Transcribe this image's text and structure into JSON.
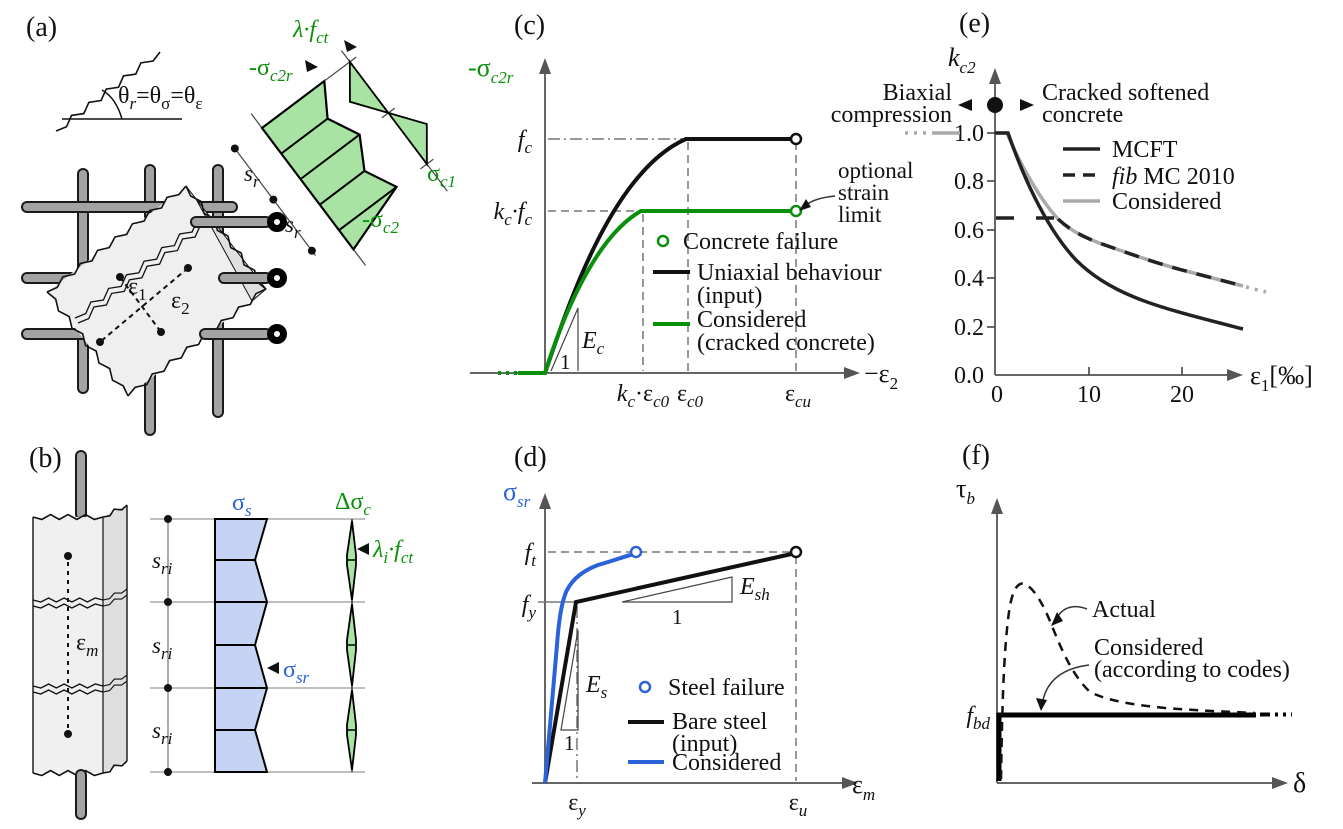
{
  "figure_title": "Material and kinematic model panels (a)-(f)",
  "colors": {
    "green": "#0a8f0a",
    "green_fill": "#a9e3a3",
    "blue": "#2a62d9",
    "blue_fill": "#c5d4f5",
    "gray_curve": "#a9a9a9",
    "axis": "#666666",
    "bar_fill": "#a3a3a3",
    "concrete": "#f0f0f0"
  },
  "a": {
    "label": "(a)",
    "theta": [
      "θ",
      "r",
      "=θ",
      "σ",
      "=θ",
      "ε"
    ],
    "lam_fct": [
      "λ·f",
      "ct"
    ],
    "sig_c2r": [
      "-σ",
      "c2r"
    ],
    "sig_c1": [
      "σ",
      "c1"
    ],
    "sig_c2": [
      "-σ",
      "c2"
    ],
    "sr": [
      "s",
      "r"
    ],
    "eps1": [
      "ε",
      "1"
    ],
    "eps2": [
      "ε",
      "2"
    ]
  },
  "b": {
    "label": "(b)",
    "eps_m": [
      "ε",
      "m"
    ],
    "sri": [
      "s",
      "ri"
    ],
    "sig_s": [
      "σ",
      "s"
    ],
    "sig_sr": [
      "σ",
      "sr"
    ],
    "dsig_c": [
      "Δσ",
      "c"
    ],
    "lami_fct": [
      "λ",
      "i",
      "·f",
      "ct"
    ]
  },
  "c": {
    "label": "(c)",
    "ylab": [
      "-σ",
      "c2r"
    ],
    "xlab": [
      "−ε",
      "2"
    ],
    "fc": [
      "f",
      "c"
    ],
    "kcfc": [
      "k",
      "c",
      "·f",
      "c"
    ],
    "Ec": [
      "E",
      "c"
    ],
    "one": "1",
    "kc_ec0": [
      "k",
      "c",
      "·ε",
      "c0"
    ],
    "ec0": [
      "ε",
      "c0"
    ],
    "ecu": [
      "ε",
      "cu"
    ],
    "leg_fail": "Concrete failure",
    "leg_uni1": "Uniaxial behaviour",
    "leg_uni2": "(input)",
    "leg_con1": "Considered",
    "leg_con2": "(cracked concrete)",
    "note": [
      "optional",
      "strain",
      "limit"
    ]
  },
  "d": {
    "label": "(d)",
    "ylab": [
      "σ",
      "sr"
    ],
    "xlab": [
      "ε",
      "m"
    ],
    "ft": [
      "f",
      "t"
    ],
    "fy": [
      "f",
      "y"
    ],
    "Es": [
      "E",
      "s"
    ],
    "Esh": [
      "E",
      "sh"
    ],
    "one": "1",
    "ey": [
      "ε",
      "y"
    ],
    "eu": [
      "ε",
      "u"
    ],
    "leg_fail": "Steel failure",
    "leg_bare1": "Bare steel",
    "leg_bare2": "(input)",
    "leg_con": "Considered"
  },
  "e": {
    "label": "(e)",
    "ylab": [
      "k",
      "c2"
    ],
    "xlab": [
      "ε",
      "1",
      "[‰]"
    ],
    "y_ticks": [
      "1.0",
      "0.8",
      "0.6",
      "0.4",
      "0.2",
      "0.0"
    ],
    "x_ticks": [
      "0",
      "10",
      "20"
    ],
    "note_left": [
      "Biaxial",
      "compression"
    ],
    "note_right": [
      "Cracked softened",
      "concrete"
    ],
    "leg_mcft": "MCFT",
    "leg_fib_it": "fib",
    "leg_fib": " MC 2010",
    "leg_con": "Considered"
  },
  "f": {
    "label": "(f)",
    "ylab": [
      "τ",
      "b"
    ],
    "xlab": "δ",
    "fbd": [
      "f",
      "bd"
    ],
    "actual": "Actual",
    "con1": "Considered",
    "con2": "(according to codes)"
  },
  "chart_data": [
    {
      "id": "c",
      "type": "line",
      "title": "Concrete compressive stress-strain (cracked membrane)",
      "xlabel": "-ε2",
      "ylabel": "-σc2r",
      "x_ticks": [
        "kc·εc0",
        "εc0",
        "εcu"
      ],
      "y_ticks": [
        "kc·fc",
        "fc"
      ],
      "legend_position": "inside right",
      "series": [
        {
          "name": "Uniaxial behaviour (input)",
          "style": "solid black",
          "points_symbolic": [
            [
              "0",
              "0"
            ],
            [
              "εc0",
              "fc"
            ],
            [
              "εcu",
              "fc"
            ]
          ],
          "initial_slope": "Ec",
          "end_marker": "open circle (concrete failure)"
        },
        {
          "name": "Considered (cracked concrete)",
          "style": "solid green",
          "points_symbolic": [
            [
              "0",
              "0"
            ],
            [
              "kc·εc0",
              "kc·fc"
            ],
            [
              "εcu",
              "kc·fc"
            ]
          ],
          "initial_slope": "Ec",
          "end_marker": "open circle (optional strain limit)"
        }
      ],
      "annotations": [
        "Concrete failure",
        "optional strain limit"
      ]
    },
    {
      "id": "d",
      "type": "line",
      "title": "Reinforcement stress-strain",
      "xlabel": "εm",
      "ylabel": "σsr",
      "x_ticks": [
        "εy",
        "εu"
      ],
      "y_ticks": [
        "fy",
        "ft"
      ],
      "series": [
        {
          "name": "Bare steel (input)",
          "style": "solid black",
          "points_symbolic": [
            [
              "0",
              "0"
            ],
            [
              "εy",
              "fy"
            ],
            [
              "εu",
              "ft"
            ]
          ],
          "slopes": [
            "Es",
            "Esh"
          ],
          "end_marker": "open circle"
        },
        {
          "name": "Considered",
          "style": "solid blue",
          "description": "stiffer response (tension stiffening), reaches ft at strain < εu",
          "end_marker": "open circle (steel failure)"
        }
      ],
      "annotations": [
        "Steel failure"
      ]
    },
    {
      "id": "e",
      "type": "line",
      "title": "Compression softening factor",
      "xlabel": "ε1[‰]",
      "ylabel": "kc2",
      "xlim": [
        0,
        27
      ],
      "ylim": [
        0.0,
        1.0
      ],
      "x_tick_values": [
        0,
        10,
        20
      ],
      "y_tick_values": [
        0.0,
        0.2,
        0.4,
        0.6,
        0.8,
        1.0
      ],
      "legend_position": "inside top-right",
      "series": [
        {
          "name": "MCFT",
          "style": "solid black",
          "x": [
            0,
            1.2,
            2,
            3,
            4,
            5,
            6,
            8,
            10,
            15,
            20,
            26.5
          ],
          "y": [
            1.0,
            1.0,
            0.87,
            0.76,
            0.67,
            0.61,
            0.55,
            0.47,
            0.41,
            0.32,
            0.26,
            0.19
          ]
        },
        {
          "name": "fib MC 2010",
          "style": "dashed black",
          "x": [
            0,
            6.2,
            8,
            10,
            15,
            20,
            26.5
          ],
          "y": [
            0.65,
            0.65,
            0.6,
            0.57,
            0.49,
            0.43,
            0.37
          ]
        },
        {
          "name": "Considered",
          "style": "solid gray",
          "x": [
            0,
            1.2,
            2,
            3,
            4,
            5,
            6.2,
            8,
            10,
            15,
            20,
            26.5
          ],
          "y": [
            1.0,
            1.0,
            0.93,
            0.85,
            0.78,
            0.71,
            0.65,
            0.6,
            0.57,
            0.49,
            0.43,
            0.37
          ]
        }
      ],
      "annotations": [
        "Biaxial compression (left of solid dot on axis)",
        "Cracked softened concrete (right of solid dot)"
      ]
    },
    {
      "id": "f",
      "type": "line",
      "title": "Bond stress-slip",
      "xlabel": "δ",
      "ylabel": "τb",
      "y_ticks": [
        "fbd"
      ],
      "series": [
        {
          "name": "Actual",
          "style": "dashed black",
          "description": "rises steeply to a peak then decays asymptotically toward fbd"
        },
        {
          "name": "Considered (according to codes)",
          "style": "solid black",
          "description": "rigid-plastic: vertical rise at δ=0 then constant at fbd"
        }
      ]
    }
  ]
}
